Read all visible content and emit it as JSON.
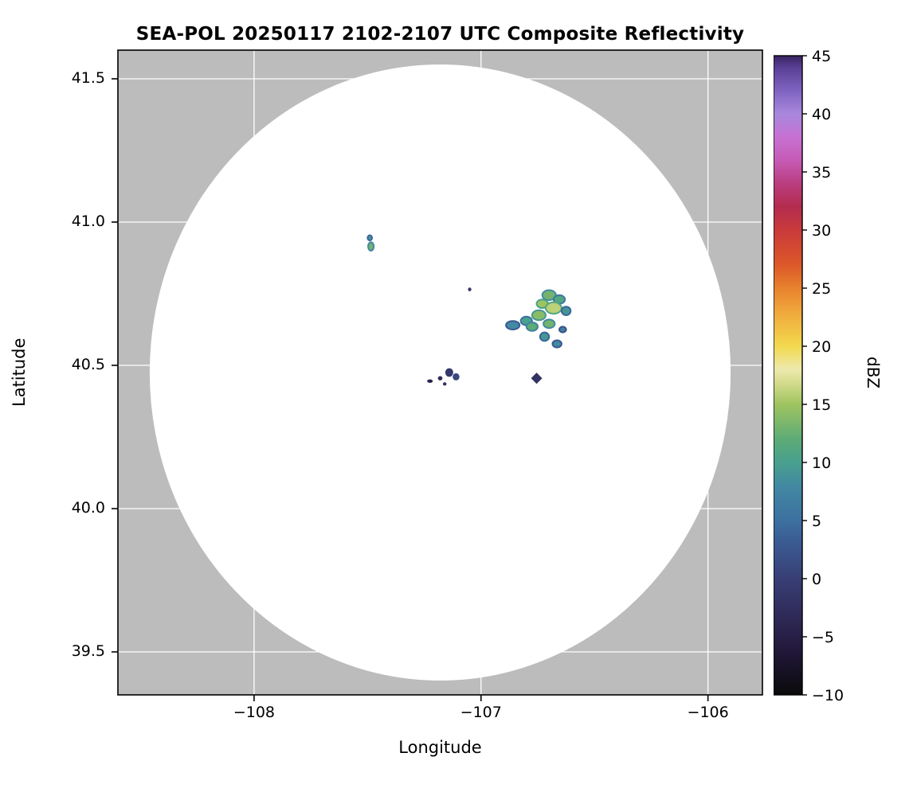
{
  "chart_data": {
    "type": "heatmap",
    "title": "SEA-POL 20250117 2102-2107 UTC Composite Reflectivity",
    "xlabel": "Longitude",
    "ylabel": "Latitude",
    "xlim": [
      -108.6,
      -105.76
    ],
    "ylim": [
      39.35,
      41.6
    ],
    "grid": true,
    "x_ticks": [
      {
        "v": -108,
        "label": "−108"
      },
      {
        "v": -107,
        "label": "−107"
      },
      {
        "v": -106,
        "label": "−106"
      }
    ],
    "y_ticks": [
      {
        "v": 39.5,
        "label": "39.5"
      },
      {
        "v": 40.0,
        "label": "40.0"
      },
      {
        "v": 40.5,
        "label": "40.5"
      },
      {
        "v": 41.0,
        "label": "41.0"
      },
      {
        "v": 41.5,
        "label": "41.5"
      }
    ],
    "colors": {
      "outside_range": "#bcbcbc",
      "range_area": "#ffffff",
      "grid": "#ffffff",
      "frame": "#000000"
    },
    "range_ring": {
      "center_lon": -107.18,
      "center_lat": 40.475,
      "radius_lon_deg": 1.28,
      "radius_lat_deg": 1.075
    },
    "colorbar": {
      "label": "dBZ",
      "min": -10,
      "max": 45,
      "ticks": [
        {
          "v": -10,
          "label": "−10"
        },
        {
          "v": -5,
          "label": "−5"
        },
        {
          "v": 0,
          "label": "0"
        },
        {
          "v": 5,
          "label": "5"
        },
        {
          "v": 10,
          "label": "10"
        },
        {
          "v": 15,
          "label": "15"
        },
        {
          "v": 20,
          "label": "20"
        },
        {
          "v": 25,
          "label": "25"
        },
        {
          "v": 30,
          "label": "30"
        },
        {
          "v": 35,
          "label": "35"
        },
        {
          "v": 40,
          "label": "40"
        },
        {
          "v": 45,
          "label": "45"
        }
      ],
      "stops": [
        {
          "v": -10,
          "c": "#0a0a0a"
        },
        {
          "v": -7,
          "c": "#1c1430"
        },
        {
          "v": -5,
          "c": "#281f46"
        },
        {
          "v": -3,
          "c": "#2f2b5a"
        },
        {
          "v": 0,
          "c": "#383f75"
        },
        {
          "v": 3,
          "c": "#3a5a91"
        },
        {
          "v": 5,
          "c": "#3d70a0"
        },
        {
          "v": 8,
          "c": "#4289a2"
        },
        {
          "v": 10,
          "c": "#48a08e"
        },
        {
          "v": 12,
          "c": "#5dab76"
        },
        {
          "v": 15,
          "c": "#9fc45f"
        },
        {
          "v": 17,
          "c": "#d8dd90"
        },
        {
          "v": 18,
          "c": "#ede9ae"
        },
        {
          "v": 20,
          "c": "#f2d94e"
        },
        {
          "v": 23,
          "c": "#f0a73b"
        },
        {
          "v": 25,
          "c": "#e8822e"
        },
        {
          "v": 27,
          "c": "#dc5829"
        },
        {
          "v": 30,
          "c": "#c93a3b"
        },
        {
          "v": 32,
          "c": "#b42c4e"
        },
        {
          "v": 34,
          "c": "#ba3d80"
        },
        {
          "v": 36,
          "c": "#c65bb5"
        },
        {
          "v": 38,
          "c": "#c771d2"
        },
        {
          "v": 40,
          "c": "#a888dc"
        },
        {
          "v": 42,
          "c": "#7f63c1"
        },
        {
          "v": 44,
          "c": "#5a3f95"
        },
        {
          "v": 45,
          "c": "#372460"
        }
      ]
    },
    "echoes": [
      {
        "lon": -107.49,
        "lat": 40.945,
        "w": 0.02,
        "h": 0.018,
        "dbz": 9
      },
      {
        "lon": -107.485,
        "lat": 40.915,
        "w": 0.025,
        "h": 0.03,
        "dbz": 13
      },
      {
        "lon": -107.05,
        "lat": 40.765,
        "w": 0.015,
        "h": 0.013,
        "dbz": -1
      },
      {
        "lon": -106.7,
        "lat": 40.745,
        "w": 0.06,
        "h": 0.035,
        "dbz": 13
      },
      {
        "lon": -106.655,
        "lat": 40.73,
        "w": 0.05,
        "h": 0.03,
        "dbz": 11
      },
      {
        "lon": -106.73,
        "lat": 40.715,
        "w": 0.05,
        "h": 0.03,
        "dbz": 15
      },
      {
        "lon": -106.68,
        "lat": 40.7,
        "w": 0.07,
        "h": 0.04,
        "dbz": 16
      },
      {
        "lon": -106.625,
        "lat": 40.69,
        "w": 0.04,
        "h": 0.03,
        "dbz": 9
      },
      {
        "lon": -106.745,
        "lat": 40.675,
        "w": 0.06,
        "h": 0.035,
        "dbz": 14
      },
      {
        "lon": -106.8,
        "lat": 40.655,
        "w": 0.05,
        "h": 0.03,
        "dbz": 10
      },
      {
        "lon": -106.86,
        "lat": 40.64,
        "w": 0.06,
        "h": 0.03,
        "dbz": 8
      },
      {
        "lon": -106.775,
        "lat": 40.635,
        "w": 0.05,
        "h": 0.03,
        "dbz": 12
      },
      {
        "lon": -106.7,
        "lat": 40.645,
        "w": 0.05,
        "h": 0.03,
        "dbz": 13
      },
      {
        "lon": -106.72,
        "lat": 40.6,
        "w": 0.04,
        "h": 0.03,
        "dbz": 9
      },
      {
        "lon": -106.665,
        "lat": 40.575,
        "w": 0.04,
        "h": 0.025,
        "dbz": 8
      },
      {
        "lon": -106.64,
        "lat": 40.625,
        "w": 0.03,
        "h": 0.02,
        "dbz": 7
      },
      {
        "lon": -107.14,
        "lat": 40.475,
        "w": 0.035,
        "h": 0.03,
        "dbz": -1
      },
      {
        "lon": -107.11,
        "lat": 40.46,
        "w": 0.03,
        "h": 0.025,
        "dbz": 1
      },
      {
        "lon": -107.18,
        "lat": 40.455,
        "w": 0.02,
        "h": 0.015,
        "dbz": -3
      },
      {
        "lon": -107.225,
        "lat": 40.445,
        "w": 0.025,
        "h": 0.012,
        "dbz": -4
      },
      {
        "lon": -107.16,
        "lat": 40.435,
        "w": 0.016,
        "h": 0.012,
        "dbz": -2
      },
      {
        "lon": -106.755,
        "lat": 40.455,
        "w": 0.035,
        "h": 0.028,
        "dbz": -2,
        "shape": "diamond"
      }
    ]
  }
}
